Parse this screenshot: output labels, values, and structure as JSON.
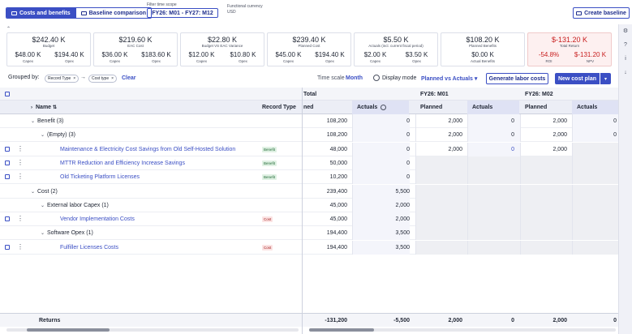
{
  "toolbar_top": {
    "tab_costs": "Costs and benefits",
    "tab_baseline": "Baseline comparison",
    "filter_label": "Filter time scope",
    "filter_value": "FY26: M01 - FY27: M12",
    "currency_label": "Functional currency",
    "currency_value": "USD",
    "create_baseline": "Create baseline"
  },
  "cards": [
    {
      "value": "$242.40 K",
      "caption": "Budget",
      "sub": [
        {
          "v": "$48.00 K",
          "c": "Capex"
        },
        {
          "v": "$194.40 K",
          "c": "Opex"
        }
      ]
    },
    {
      "value": "$219.60 K",
      "caption": "EAC Cost",
      "sub": [
        {
          "v": "$36.00 K",
          "c": "Capex"
        },
        {
          "v": "$183.60 K",
          "c": "Opex"
        }
      ]
    },
    {
      "value": "$22.80 K",
      "caption": "Budget VS EAC Variance",
      "sub": [
        {
          "v": "$12.00 K",
          "c": "Capex"
        },
        {
          "v": "$10.80 K",
          "c": "Opex"
        }
      ]
    },
    {
      "value": "$239.40 K",
      "caption": "Planned Cost",
      "sub": [
        {
          "v": "$45.00 K",
          "c": "Capex"
        },
        {
          "v": "$194.40 K",
          "c": "Opex"
        }
      ]
    },
    {
      "value": "$5.50 K",
      "caption": "Actuals (incl. current fiscal period)",
      "sub": [
        {
          "v": "$2.00 K",
          "c": "Capex"
        },
        {
          "v": "$3.50 K",
          "c": "Opex"
        }
      ]
    },
    {
      "value": "$108.20 K",
      "caption": "Planned Benefits",
      "sub": [
        {
          "v": "$0.00 K",
          "c": "Actual Benefits"
        }
      ]
    },
    {
      "value": "$-131.20 K",
      "caption": "Total Return",
      "sub": [
        {
          "v": "-54.8%",
          "c": "ROI"
        },
        {
          "v": "$-131.20 K",
          "c": "NPV"
        }
      ]
    }
  ],
  "toolbar": {
    "grouped_by": "Grouped by:",
    "chip1": "Record Type",
    "chip2": "Cost type",
    "clear": "Clear",
    "time_scale_label": "Time scale",
    "time_scale_value": "Month",
    "display_mode_label": "Display mode",
    "display_mode_value": "Planned vs Actuals",
    "generate": "Generate labor costs",
    "new_cost_plan": "New cost plan"
  },
  "grid": {
    "col_name": "Name",
    "col_record_type": "Record Type",
    "total_group_label": "Total",
    "period1": "FY26: M01",
    "period2": "FY26: M02",
    "col_planned_cut": "ned",
    "col_planned": "Planned",
    "col_actuals": "Actuals",
    "rows": [
      {
        "name": "Benefit (3)",
        "tp": "108,200",
        "ta": "0",
        "p1": "2,000",
        "a1": "0",
        "p2": "2,000",
        "a2": "0"
      },
      {
        "name": "(Empty) (3)",
        "tp": "108,200",
        "ta": "0",
        "p1": "2,000",
        "a1": "0",
        "p2": "2,000",
        "a2": "0"
      },
      {
        "name": "Maintenance & Electricity Cost Savings from Old Self-Hosted Solution",
        "tag": "Benefit",
        "tp": "48,000",
        "ta": "0",
        "p1": "2,000",
        "a1": "0",
        "p2": "2,000",
        "a2": ""
      },
      {
        "name": "MTTR Reduction and Efficiency Increase Savings",
        "tag": "Benefit",
        "tp": "50,000",
        "ta": "0",
        "p1": "",
        "a1": "",
        "p2": "",
        "a2": ""
      },
      {
        "name": "Old Ticketing Platform Licenses",
        "tag": "Benefit",
        "tp": "10,200",
        "ta": "0",
        "p1": "",
        "a1": "",
        "p2": "",
        "a2": ""
      },
      {
        "name": "Cost (2)",
        "tp": "239,400",
        "ta": "5,500",
        "p1": "",
        "a1": "",
        "p2": "",
        "a2": ""
      },
      {
        "name": "External labor Capex (1)",
        "tp": "45,000",
        "ta": "2,000",
        "p1": "",
        "a1": "",
        "p2": "",
        "a2": ""
      },
      {
        "name": "Vendor Implementation Costs",
        "tag": "Cost",
        "tp": "45,000",
        "ta": "2,000",
        "p1": "",
        "a1": "",
        "p2": "",
        "a2": ""
      },
      {
        "name": "Software Opex (1)",
        "tp": "194,400",
        "ta": "3,500",
        "p1": "",
        "a1": "",
        "p2": "",
        "a2": ""
      },
      {
        "name": "Fulfiller Licenses Costs",
        "tag": "Cost",
        "tp": "194,400",
        "ta": "3,500",
        "p1": "",
        "a1": "",
        "p2": "",
        "a2": ""
      }
    ],
    "returns": {
      "name": "Returns",
      "tp": "-131,200",
      "ta": "-5,500",
      "p1": "2,000",
      "a1": "0",
      "p2": "2,000",
      "a2": "0"
    }
  }
}
